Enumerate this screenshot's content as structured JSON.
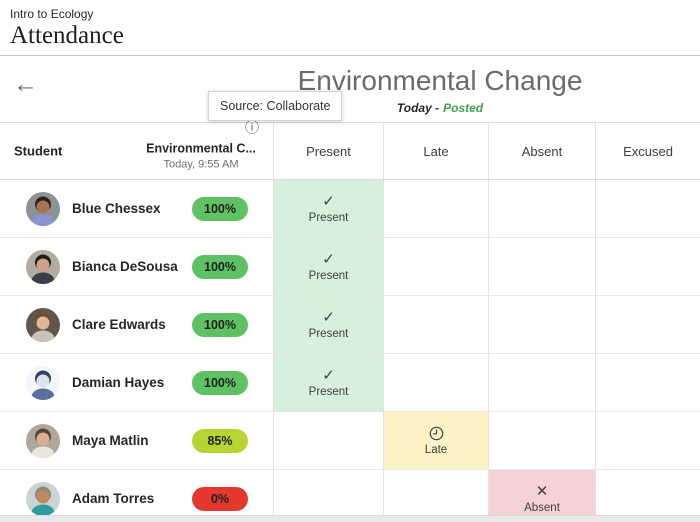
{
  "header": {
    "course": "Intro to Ecology",
    "title": "Attendance"
  },
  "meeting_bar": {
    "back_icon": "←",
    "title": "Environmental Change",
    "date_label": "Today -",
    "posted_label": "Posted",
    "tooltip": "Source: Collaborate"
  },
  "table": {
    "student_header": "Student",
    "meeting_column": {
      "info_icon": "ⓘ",
      "title": "Environmental C...",
      "subtitle": "Today, 9:55 AM"
    },
    "status_columns": [
      "Present",
      "Late",
      "Absent",
      "Excused"
    ],
    "status_styles": {
      "Present": {
        "bg": "#d7f0dc",
        "glyph": "✓",
        "icon": "check-icon"
      },
      "Late": {
        "bg": "#fbf3c5",
        "glyph": "clock",
        "icon": "clock-icon"
      },
      "Absent": {
        "bg": "#f5d2d5",
        "glyph": "✕",
        "icon": "x-icon"
      }
    },
    "rows": [
      {
        "name": "Blue Chessex",
        "score": "100%",
        "score_color": "#5ec163",
        "status": "Present",
        "avatar": {
          "bg": "#8d9296",
          "hair": "#2a211c",
          "skin": "#a8734f",
          "shirt": "#8b93d6"
        }
      },
      {
        "name": "Bianca DeSousa",
        "score": "100%",
        "score_color": "#5ec163",
        "status": "Present",
        "avatar": {
          "bg": "#b3aca2",
          "hair": "#221b18",
          "skin": "#cfa284",
          "shirt": "#3b3f46"
        }
      },
      {
        "name": "Clare Edwards",
        "score": "100%",
        "score_color": "#5ec163",
        "status": "Present",
        "avatar": {
          "bg": "#5f574e",
          "hair": "#6f4c33",
          "skin": "#dbb79c",
          "shirt": "#c9c2b8"
        }
      },
      {
        "name": "Damian Hayes",
        "score": "100%",
        "score_color": "#5ec163",
        "status": "Present",
        "avatar": {
          "bg": "#f2f5fa",
          "hair": "#35425f",
          "skin": "#dde4f0",
          "shirt": "#5a6f9e"
        }
      },
      {
        "name": "Maya Matlin",
        "score": "85%",
        "score_color": "#b7d435",
        "status": "Late",
        "avatar": {
          "bg": "#b0a79c",
          "hair": "#5c432f",
          "skin": "#d9ae92",
          "shirt": "#e9e6e1"
        }
      },
      {
        "name": "Adam Torres",
        "score": "0%",
        "score_color": "#e4372d",
        "status": "Absent",
        "avatar": {
          "bg": "#cdd2d3",
          "hair": "#8e8a7f",
          "skin": "#bf8a5e",
          "shirt": "#2e9ba1"
        }
      }
    ]
  }
}
